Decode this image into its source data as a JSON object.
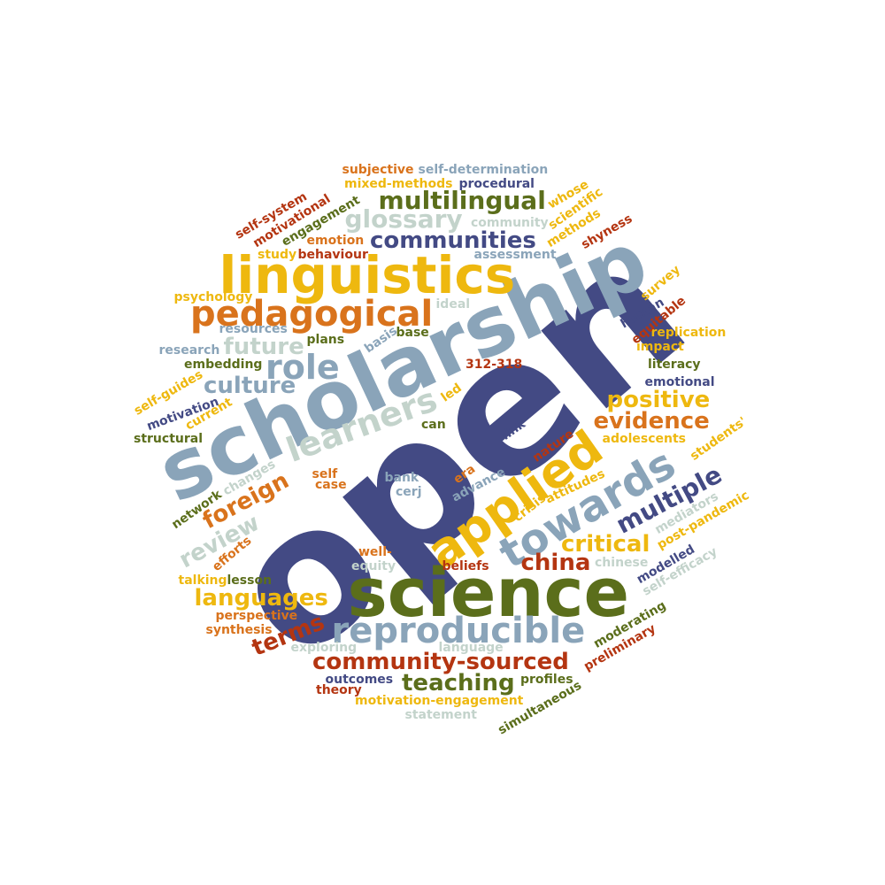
{
  "palette": {
    "navy": "#434a84",
    "steel": "#8aa4b9",
    "gold": "#eeb80f",
    "orange": "#d9731c",
    "olive": "#5b6e1b",
    "red": "#b43511",
    "sage": "#c3d3cb"
  },
  "words": [
    {
      "text": "open",
      "color": "navy"
    },
    {
      "text": "scholarship",
      "color": "steel"
    },
    {
      "text": "science",
      "color": "olive"
    },
    {
      "text": "linguistics",
      "color": "gold"
    },
    {
      "text": "applied",
      "color": "gold"
    },
    {
      "text": "towards",
      "color": "steel"
    },
    {
      "text": "pedagogical",
      "color": "orange"
    },
    {
      "text": "reproducible",
      "color": "steel"
    },
    {
      "text": "learners",
      "color": "sage"
    },
    {
      "text": "role",
      "color": "steel"
    },
    {
      "text": "multilingual",
      "color": "olive"
    },
    {
      "text": "communities",
      "color": "navy"
    },
    {
      "text": "glossary",
      "color": "sage"
    },
    {
      "text": "community-sourced",
      "color": "red"
    },
    {
      "text": "languages",
      "color": "gold"
    },
    {
      "text": "teaching",
      "color": "olive"
    },
    {
      "text": "china",
      "color": "red"
    },
    {
      "text": "critical",
      "color": "gold"
    },
    {
      "text": "positive",
      "color": "gold"
    },
    {
      "text": "evidence",
      "color": "orange"
    },
    {
      "text": "multiple",
      "color": "navy"
    },
    {
      "text": "foreign",
      "color": "orange"
    },
    {
      "text": "future",
      "color": "sage"
    },
    {
      "text": "culture",
      "color": "steel"
    },
    {
      "text": "review",
      "color": "sage"
    },
    {
      "text": "terms",
      "color": "red"
    },
    {
      "text": "subjective",
      "color": "orange"
    },
    {
      "text": "self-determination",
      "color": "steel"
    },
    {
      "text": "mixed-methods",
      "color": "gold"
    },
    {
      "text": "procedural",
      "color": "navy"
    },
    {
      "text": "community",
      "color": "sage"
    },
    {
      "text": "emotion",
      "color": "orange"
    },
    {
      "text": "study",
      "color": "gold"
    },
    {
      "text": "behaviour",
      "color": "red"
    },
    {
      "text": "assessment",
      "color": "steel"
    },
    {
      "text": "psychology",
      "color": "gold"
    },
    {
      "text": "ideal",
      "color": "sage"
    },
    {
      "text": "resources",
      "color": "steel"
    },
    {
      "text": "plans",
      "color": "olive"
    },
    {
      "text": "base",
      "color": "olive"
    },
    {
      "text": "basis",
      "color": "steel"
    },
    {
      "text": "research",
      "color": "steel"
    },
    {
      "text": "embedding",
      "color": "olive"
    },
    {
      "text": "312-318",
      "color": "red"
    },
    {
      "text": "led",
      "color": "gold"
    },
    {
      "text": "replication",
      "color": "gold"
    },
    {
      "text": "impact",
      "color": "gold"
    },
    {
      "text": "literacy",
      "color": "olive"
    },
    {
      "text": "emotional",
      "color": "navy"
    },
    {
      "text": "structural",
      "color": "olive"
    },
    {
      "text": "can",
      "color": "olive"
    },
    {
      "text": "link",
      "color": "navy"
    },
    {
      "text": "adolescents",
      "color": "gold"
    },
    {
      "text": "self",
      "color": "orange"
    },
    {
      "text": "case",
      "color": "orange"
    },
    {
      "text": "bank",
      "color": "steel"
    },
    {
      "text": "cerj",
      "color": "steel"
    },
    {
      "text": "era",
      "color": "orange"
    },
    {
      "text": "advance",
      "color": "steel"
    },
    {
      "text": "well-",
      "color": "orange"
    },
    {
      "text": "equity",
      "color": "sage"
    },
    {
      "text": "beliefs",
      "color": "red"
    },
    {
      "text": "chinese",
      "color": "sage"
    },
    {
      "text": "talking",
      "color": "gold"
    },
    {
      "text": "lesson",
      "color": "olive"
    },
    {
      "text": "perspective",
      "color": "orange"
    },
    {
      "text": "synthesis",
      "color": "orange"
    },
    {
      "text": "exploring",
      "color": "sage"
    },
    {
      "text": "language",
      "color": "sage"
    },
    {
      "text": "outcomes",
      "color": "navy"
    },
    {
      "text": "theory",
      "color": "red"
    },
    {
      "text": "profiles",
      "color": "olive"
    },
    {
      "text": "motivation-engagement",
      "color": "gold"
    },
    {
      "text": "statement",
      "color": "sage"
    },
    {
      "text": "self-system",
      "color": "red"
    },
    {
      "text": "motivational",
      "color": "red"
    },
    {
      "text": "engagement",
      "color": "olive"
    },
    {
      "text": "whose",
      "color": "gold"
    },
    {
      "text": "scientific",
      "color": "gold"
    },
    {
      "text": "methods",
      "color": "gold"
    },
    {
      "text": "shyness",
      "color": "red"
    },
    {
      "text": "survey",
      "color": "gold"
    },
    {
      "text": "human",
      "color": "navy"
    },
    {
      "text": "equitable",
      "color": "red"
    },
    {
      "text": "self-guides",
      "color": "gold"
    },
    {
      "text": "motivation",
      "color": "navy"
    },
    {
      "text": "current",
      "color": "gold"
    },
    {
      "text": "students'",
      "color": "gold"
    },
    {
      "text": "nature",
      "color": "red"
    },
    {
      "text": "changes",
      "color": "sage"
    },
    {
      "text": "network",
      "color": "olive"
    },
    {
      "text": "efforts",
      "color": "orange"
    },
    {
      "text": "crisis",
      "color": "gold"
    },
    {
      "text": "attitudes",
      "color": "gold"
    },
    {
      "text": "mediators",
      "color": "sage"
    },
    {
      "text": "post-pandemic",
      "color": "gold"
    },
    {
      "text": "modelled",
      "color": "navy"
    },
    {
      "text": "self-efficacy",
      "color": "sage"
    },
    {
      "text": "moderating",
      "color": "olive"
    },
    {
      "text": "preliminary",
      "color": "red"
    },
    {
      "text": "simultaneous",
      "color": "olive"
    }
  ]
}
